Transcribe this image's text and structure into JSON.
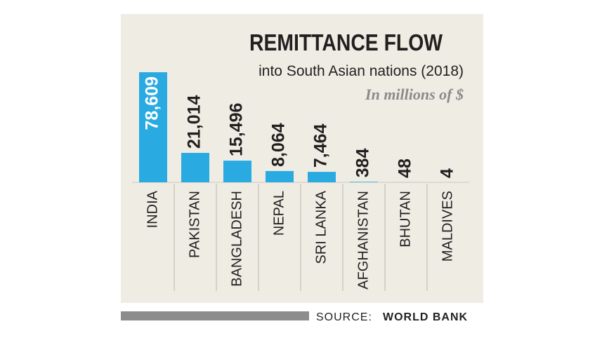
{
  "chart_data": {
    "type": "bar",
    "title": "REMITTANCE FLOW",
    "subtitle": "into South Asian nations (2018)",
    "unit_note": "In millions of $",
    "categories": [
      "INDIA",
      "PAKISTAN",
      "BANGLADESH",
      "NEPAL",
      "SRI LANKA",
      "AFGHANISTAN",
      "BHUTAN",
      "MALDIVES"
    ],
    "values": [
      78609,
      21014,
      15496,
      8064,
      7464,
      384,
      48,
      4
    ],
    "value_labels": [
      "78,609",
      "21,014",
      "15,496",
      "8,064",
      "7,464",
      "384",
      "48",
      "4"
    ],
    "color": "#29abe2",
    "source_label": "SOURCE:",
    "source": "WORLD BANK"
  }
}
